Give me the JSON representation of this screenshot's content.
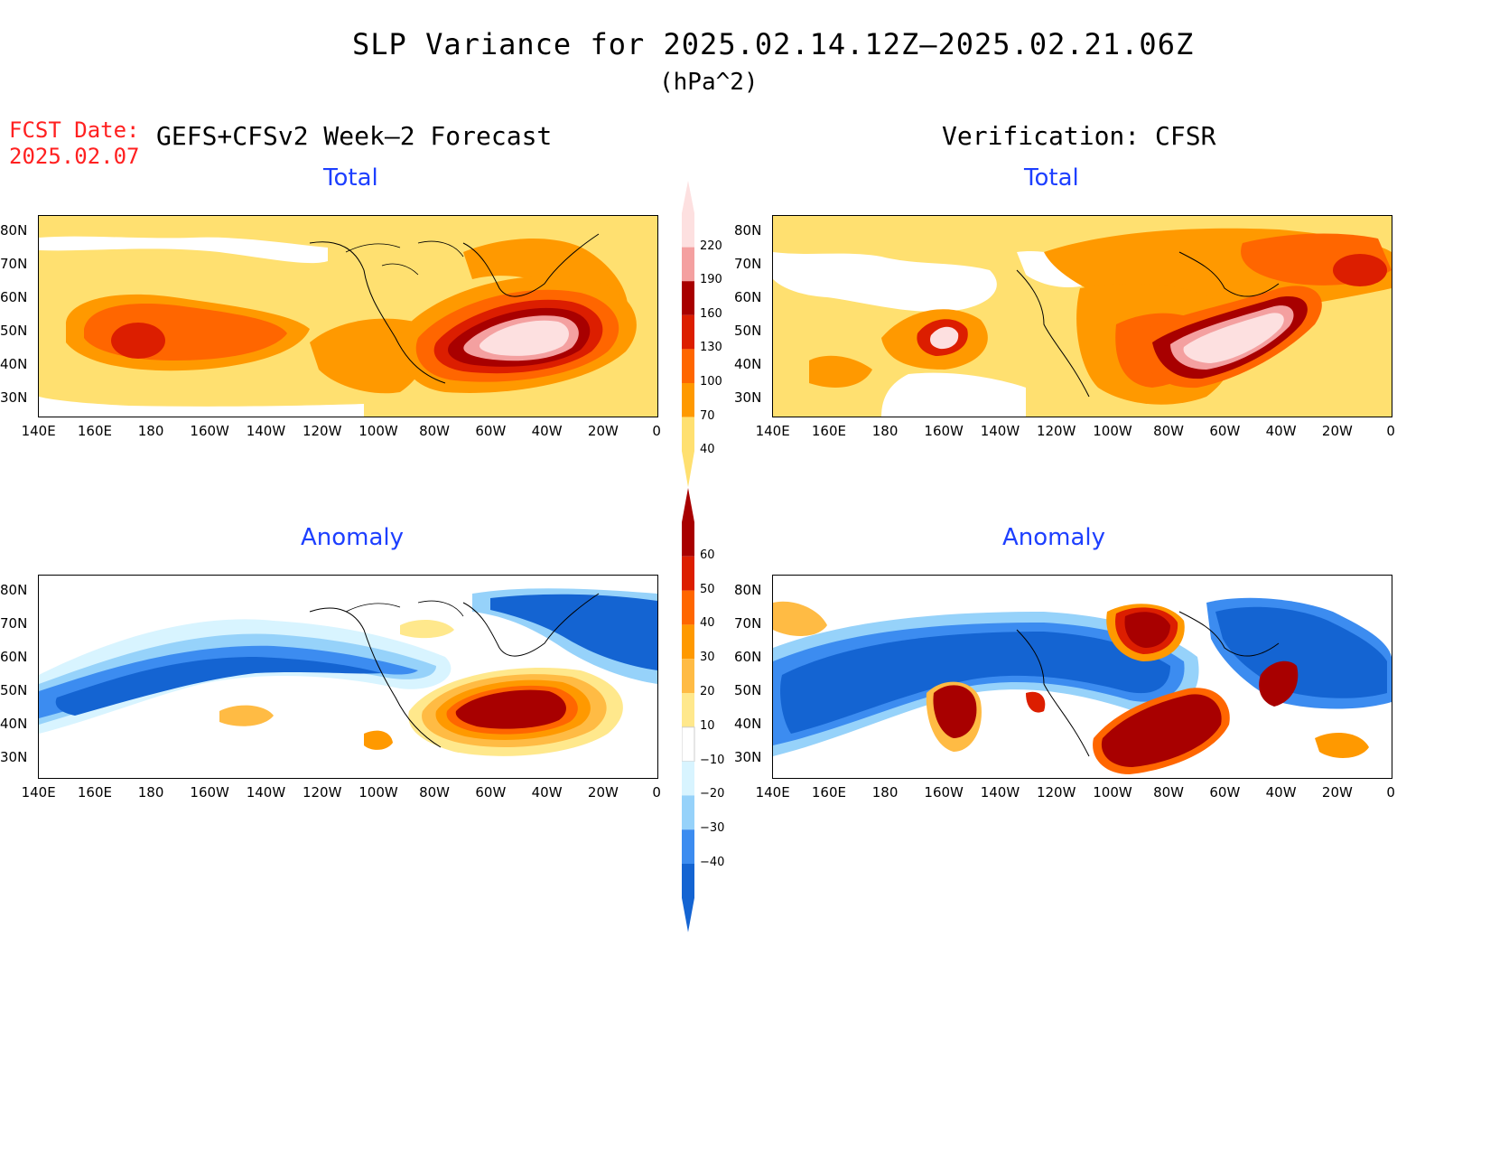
{
  "title": "SLP Variance for 2025.02.14.12Z—2025.02.21.06Z",
  "units": "(hPa^2)",
  "fcst_label_line1": "FCST Date:",
  "fcst_label_line2": "2025.02.07",
  "left_header": "GEFS+CFSv2 Week—2 Forecast",
  "right_header": "Verification: CFSR",
  "panel_titles": {
    "top_left": "Total",
    "top_right": "Total",
    "bottom_left": "Anomaly",
    "bottom_right": "Anomaly"
  },
  "lat_ticks": [
    "80N",
    "70N",
    "60N",
    "50N",
    "40N",
    "30N"
  ],
  "lon_ticks": [
    "140E",
    "160E",
    "180",
    "160W",
    "140W",
    "120W",
    "100W",
    "80W",
    "60W",
    "40W",
    "20W",
    "0"
  ],
  "total_colorbar": {
    "labels": [
      "220",
      "190",
      "160",
      "130",
      "100",
      "70",
      "40"
    ],
    "colors": [
      "#fde0e0",
      "#f4a0a0",
      "#a80000",
      "#dc1e00",
      "#ff6600",
      "#ff9900",
      "#ffe070"
    ]
  },
  "anomaly_colorbar": {
    "labels": [
      "60",
      "50",
      "40",
      "30",
      "20",
      "10",
      "−10",
      "−20",
      "−30",
      "−40"
    ],
    "colors": [
      "#a80000",
      "#dc1e00",
      "#ff6600",
      "#ff9900",
      "#ffbb44",
      "#ffe88c",
      "#ffffff",
      "#d8f4ff",
      "#96d2fa",
      "#3c8cf0",
      "#1464d2"
    ]
  }
}
